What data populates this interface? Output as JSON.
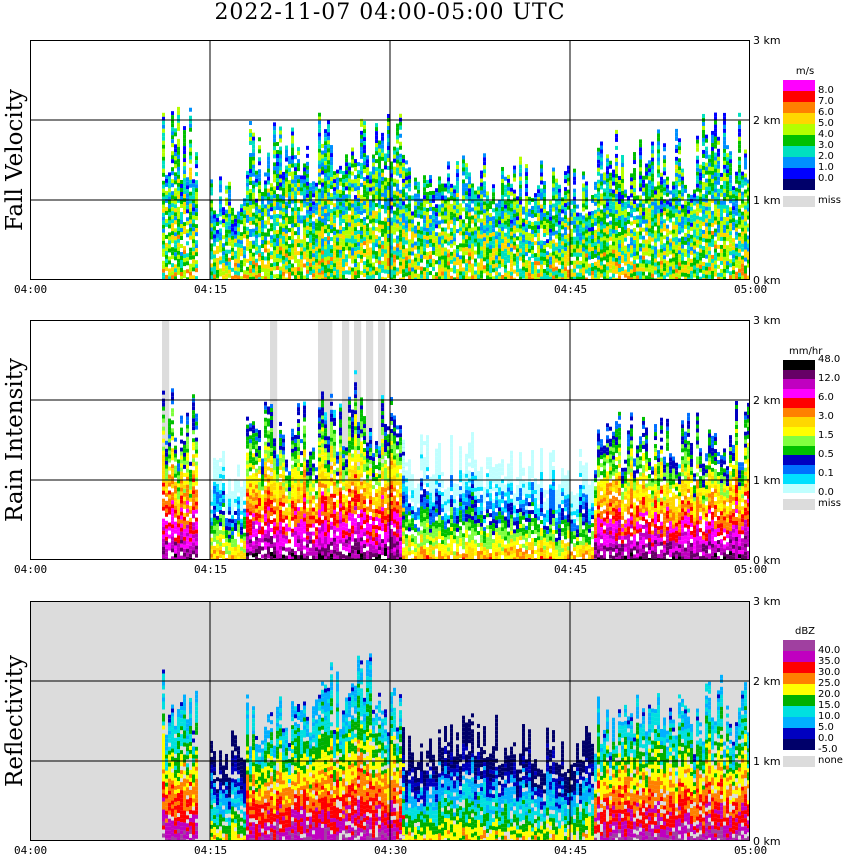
{
  "title": "2022-11-07   04:00-05:00 UTC",
  "x_ticks": [
    "04:00",
    "04:15",
    "04:30",
    "04:45",
    "05:00"
  ],
  "height_ticks": [
    "3 km",
    "2 km",
    "1 km",
    "0 km"
  ],
  "panels": [
    {
      "label": "Fall Velocity",
      "unit": "m/s",
      "scale_labels": [
        "8.0",
        "7.0",
        "6.0",
        "5.0",
        "4.0",
        "3.0",
        "2.0",
        "1.0",
        "0.0"
      ],
      "missing_label": "miss",
      "colors": [
        "#ff00ff",
        "#ff0000",
        "#ff8000",
        "#ffd700",
        "#b4ff00",
        "#00c000",
        "#00e0c0",
        "#0090ff",
        "#0000ff",
        "#00006a"
      ],
      "missing_color": "#dcdcdc",
      "background": "#ffffff"
    },
    {
      "label": "Rain Intensity",
      "unit": "mm/hr",
      "scale_labels": [
        "48.0",
        "12.0",
        "6.0",
        "3.0",
        "1.5",
        "0.5",
        "0.1",
        "0.0"
      ],
      "missing_label": "miss",
      "colors": [
        "#000000",
        "#660066",
        "#c000c0",
        "#ff00ff",
        "#ff0000",
        "#ff8000",
        "#ffd700",
        "#ffff00",
        "#80ff40",
        "#00c000",
        "#0000c0",
        "#0070ff",
        "#00e0ff",
        "#c0ffff"
      ],
      "missing_color": "#dcdcdc",
      "background": "#ffffff"
    },
    {
      "label": "Reflectivity",
      "unit": "dBZ",
      "scale_labels": [
        "40.0",
        "35.0",
        "30.0",
        "25.0",
        "20.0",
        "15.0",
        "10.0",
        "5.0",
        "0.0",
        "-5.0"
      ],
      "missing_label": "none",
      "colors": [
        "#a040a0",
        "#c000c0",
        "#ff0000",
        "#ff8000",
        "#ffff00",
        "#00b000",
        "#00e0e0",
        "#00b0ff",
        "#0000c0",
        "#00006a"
      ],
      "missing_color": "#dcdcdc",
      "background": "#dcdcdc"
    }
  ],
  "chart_data": {
    "type": "heatmap",
    "title": "2022-11-07   04:00-05:00 UTC",
    "x_range": [
      "04:00",
      "05:00"
    ],
    "ylim_km": [
      0,
      3
    ],
    "grid": true,
    "precip_columns": [
      {
        "start": "04:11",
        "end": "04:14",
        "top_km": 2.2
      },
      {
        "start": "04:15",
        "end": "04:18",
        "top_km": 1.4
      },
      {
        "start": "04:18",
        "end": "04:25",
        "top_km": 2.0
      },
      {
        "start": "04:24",
        "end": "04:31",
        "top_km": 2.4
      },
      {
        "start": "04:31",
        "end": "04:41",
        "top_km": 1.6
      },
      {
        "start": "04:41",
        "end": "04:47",
        "top_km": 1.5
      },
      {
        "start": "04:47",
        "end": "04:56",
        "top_km": 1.9
      },
      {
        "start": "04:56",
        "end": "05:00",
        "top_km": 2.1
      }
    ]
  }
}
